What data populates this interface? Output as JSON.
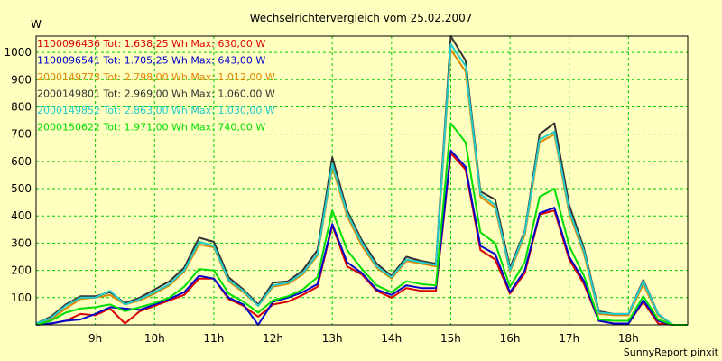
{
  "chart_data": {
    "type": "line",
    "title": "Wechselrichtervergleich vom 25.02.2007",
    "ylabel": "W",
    "xlabel": "",
    "ylim": [
      0,
      1060
    ],
    "yticks": [
      100,
      200,
      300,
      400,
      500,
      600,
      700,
      800,
      900,
      1000
    ],
    "xlim": [
      8.0,
      19.0
    ],
    "xticks": [
      9,
      10,
      11,
      12,
      13,
      14,
      15,
      16,
      17,
      18
    ],
    "xtick_labels": [
      "9h",
      "10h",
      "11h",
      "12h",
      "13h",
      "14h",
      "15h",
      "16h",
      "17h",
      "18h"
    ],
    "grid": true,
    "legend_position": "top-left",
    "x": [
      8.0,
      8.25,
      8.5,
      8.75,
      9.0,
      9.25,
      9.5,
      9.75,
      10.0,
      10.25,
      10.5,
      10.75,
      11.0,
      11.25,
      11.5,
      11.75,
      12.0,
      12.25,
      12.5,
      12.75,
      13.0,
      13.25,
      13.5,
      13.75,
      14.0,
      14.25,
      14.5,
      14.75,
      15.0,
      15.25,
      15.5,
      15.75,
      16.0,
      16.25,
      16.5,
      16.75,
      17.0,
      17.25,
      17.5,
      17.75,
      18.0,
      18.25,
      18.5,
      18.75,
      19.0
    ],
    "series": [
      {
        "legend": "1100096436 Tot: 1.638,25 Wh Max: 630,00 W",
        "color": "#dd0000",
        "values": [
          0,
          5,
          15,
          40,
          35,
          60,
          5,
          50,
          70,
          90,
          110,
          170,
          170,
          95,
          70,
          30,
          75,
          85,
          110,
          140,
          365,
          215,
          185,
          125,
          100,
          135,
          125,
          125,
          630,
          570,
          275,
          240,
          115,
          190,
          405,
          420,
          240,
          150,
          15,
          5,
          5,
          85,
          5,
          0,
          0
        ]
      },
      {
        "legend": "1100096541 Tot: 1.705,25 Wh Max: 643,00 W",
        "color": "#0000cc",
        "values": [
          0,
          5,
          15,
          20,
          40,
          65,
          60,
          55,
          75,
          95,
          120,
          180,
          170,
          100,
          75,
          0,
          85,
          100,
          120,
          150,
          370,
          230,
          190,
          130,
          110,
          145,
          135,
          135,
          640,
          580,
          290,
          260,
          120,
          200,
          410,
          430,
          250,
          160,
          15,
          5,
          5,
          90,
          15,
          0,
          0
        ]
      },
      {
        "legend": "2000149773 Tot: 2.798,00 Wh Max: 1.012,00 W",
        "color": "#dd8800",
        "values": [
          5,
          20,
          60,
          95,
          100,
          110,
          75,
          90,
          115,
          145,
          195,
          295,
          285,
          160,
          120,
          70,
          140,
          150,
          185,
          255,
          580,
          400,
          290,
          210,
          170,
          235,
          225,
          215,
          1010,
          930,
          470,
          430,
          195,
          330,
          670,
          700,
          410,
          260,
          40,
          35,
          35,
          150,
          35,
          0,
          0
        ]
      },
      {
        "legend": "2000149801 Tot: 2.969,00 Wh Max: 1.060,00 W",
        "color": "#333333",
        "values": [
          5,
          30,
          75,
          105,
          105,
          120,
          80,
          100,
          130,
          160,
          210,
          320,
          305,
          175,
          130,
          75,
          155,
          160,
          200,
          275,
          615,
          420,
          310,
          225,
          180,
          250,
          235,
          225,
          1060,
          970,
          490,
          460,
          210,
          345,
          700,
          740,
          440,
          280,
          50,
          40,
          40,
          165,
          40,
          0,
          0
        ]
      },
      {
        "legend": "2000149852 Tot: 2.863,00 Wh Max: 1.030,00 W",
        "color": "#22cccc",
        "values": [
          5,
          25,
          70,
          100,
          100,
          125,
          75,
          95,
          120,
          150,
          200,
          305,
          290,
          165,
          125,
          70,
          145,
          155,
          190,
          260,
          590,
          410,
          300,
          215,
          175,
          240,
          230,
          220,
          1030,
          950,
          480,
          440,
          200,
          340,
          680,
          710,
          420,
          270,
          45,
          40,
          40,
          160,
          40,
          0,
          0
        ]
      },
      {
        "legend": "2000150622 Tot: 1.971,00 Wh Max: 740,00 W",
        "color": "#00dd00",
        "values": [
          0,
          15,
          45,
          60,
          65,
          75,
          50,
          65,
          80,
          100,
          140,
          205,
          200,
          115,
          85,
          45,
          90,
          105,
          130,
          175,
          420,
          275,
          205,
          145,
          120,
          160,
          150,
          145,
          740,
          670,
          340,
          300,
          140,
          230,
          470,
          500,
          290,
          180,
          20,
          15,
          15,
          105,
          20,
          0,
          0
        ]
      }
    ],
    "footer": "SunnyReport pinxit"
  }
}
